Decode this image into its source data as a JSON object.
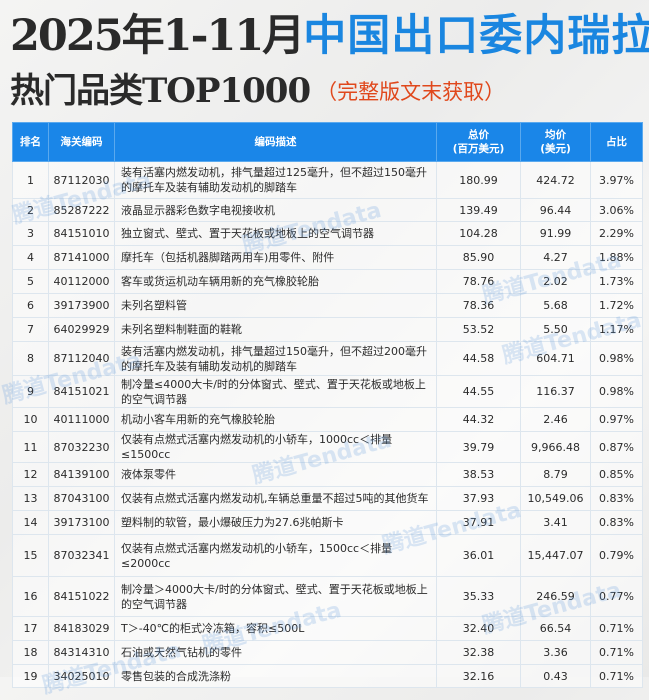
{
  "title": {
    "line1_dark": "2025年1-11月",
    "line1_blue": "中国出口委内瑞拉",
    "line2": "热门品类TOP1000",
    "line2_note": "（完整版文末获取）"
  },
  "colors": {
    "accent_blue": "#1a86e8",
    "note_red": "#e0481c",
    "title_dark": "#2a2a2a"
  },
  "watermark": "腾道Tendata",
  "table": {
    "headers": {
      "rank": "排名",
      "code": "海关编码",
      "desc": "编码描述",
      "total": "总价\n(百万美元)",
      "avg": "均价\n(美元)",
      "share": "占比"
    },
    "rows": [
      {
        "rank": "1",
        "code": "87112030",
        "desc": "装有活塞内燃发动机，排气量超过125毫升，但不超过150毫升的摩托车及装有辅助发动机的脚踏车",
        "total": "180.99",
        "avg": "424.72",
        "share": "3.97%"
      },
      {
        "rank": "2",
        "code": "85287222",
        "desc": "液晶显示器彩色数字电视接收机",
        "total": "139.49",
        "avg": "96.44",
        "share": "3.06%"
      },
      {
        "rank": "3",
        "code": "84151010",
        "desc": "独立窗式、壁式、置于天花板或地板上的空气调节器",
        "total": "104.28",
        "avg": "91.99",
        "share": "2.29%"
      },
      {
        "rank": "4",
        "code": "87141000",
        "desc": "摩托车（包括机器脚踏两用车)用零件、附件",
        "total": "85.90",
        "avg": "4.27",
        "share": "1.88%"
      },
      {
        "rank": "5",
        "code": "40112000",
        "desc": "客车或货运机动车辆用新的充气橡胶轮胎",
        "total": "78.76",
        "avg": "2.02",
        "share": "1.73%"
      },
      {
        "rank": "6",
        "code": "39173900",
        "desc": "未列名塑料管",
        "total": "78.36",
        "avg": "5.68",
        "share": "1.72%"
      },
      {
        "rank": "7",
        "code": "64029929",
        "desc": "未列名塑料制鞋面的鞋靴",
        "total": "53.52",
        "avg": "5.50",
        "share": "1.17%"
      },
      {
        "rank": "8",
        "code": "87112040",
        "desc": "装有活塞内燃发动机，排气量超过150毫升，但不超过200毫升的摩托车及装有辅助发动机的脚踏车",
        "total": "44.58",
        "avg": "604.71",
        "share": "0.98%"
      },
      {
        "rank": "9",
        "code": "84151021",
        "desc": "制冷量≤4000大卡/时的分体窗式、壁式、置于天花板或地板上的空气调节器",
        "total": "44.55",
        "avg": "116.37",
        "share": "0.98%"
      },
      {
        "rank": "10",
        "code": "40111000",
        "desc": "机动小客车用新的充气橡胶轮胎",
        "total": "44.32",
        "avg": "2.46",
        "share": "0.97%"
      },
      {
        "rank": "11",
        "code": "87032230",
        "desc": "仅装有点燃式活塞内燃发动机的小轿车，1000cc＜排量≤1500cc",
        "total": "39.79",
        "avg": "9,966.48",
        "share": "0.87%"
      },
      {
        "rank": "12",
        "code": "84139100",
        "desc": "液体泵零件",
        "total": "38.53",
        "avg": "8.79",
        "share": "0.85%"
      },
      {
        "rank": "13",
        "code": "87043100",
        "desc": "仅装有点燃式活塞内燃发动机,车辆总重量不超过5吨的其他货车",
        "total": "37.93",
        "avg": "10,549.06",
        "share": "0.83%"
      },
      {
        "rank": "14",
        "code": "39173100",
        "desc": "塑料制的软管，最小爆破压力为27.6兆帕斯卡",
        "total": "37.91",
        "avg": "3.41",
        "share": "0.83%"
      },
      {
        "rank": "15",
        "code": "87032341",
        "desc": "仅装有点燃式活塞内燃发动机的小轿车，1500cc＜排量≤2000cc",
        "total": "36.01",
        "avg": "15,447.07",
        "share": "0.79%"
      },
      {
        "rank": "16",
        "code": "84151022",
        "desc": "制冷量＞4000大卡/时的分体窗式、壁式、置于天花板或地板上的空气调节器",
        "total": "35.33",
        "avg": "246.59",
        "share": "0.77%"
      },
      {
        "rank": "17",
        "code": "84183029",
        "desc": "T＞-40℃的柜式冷冻箱，容积≤500L",
        "total": "32.40",
        "avg": "66.54",
        "share": "0.71%"
      },
      {
        "rank": "18",
        "code": "84314310",
        "desc": "石油或天然气钻机的零件",
        "total": "32.38",
        "avg": "3.36",
        "share": "0.71%"
      },
      {
        "rank": "19",
        "code": "34025010",
        "desc": "零售包装的合成洗涤粉",
        "total": "32.16",
        "avg": "0.43",
        "share": "0.71%"
      }
    ]
  }
}
